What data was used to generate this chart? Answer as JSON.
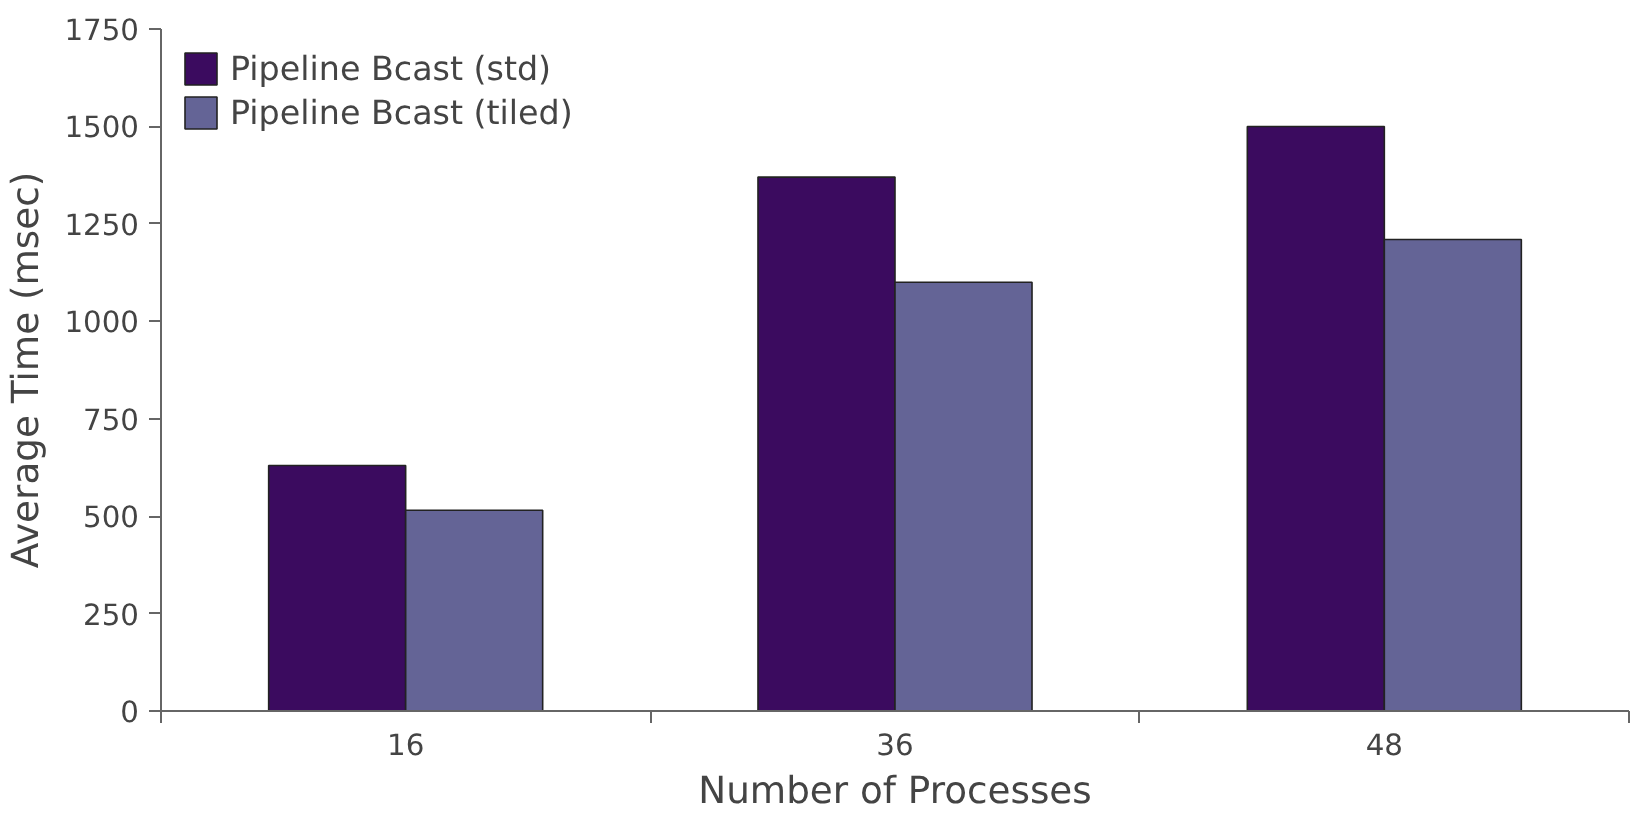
{
  "chart_data": {
    "type": "bar",
    "xlabel": "Number of Processes",
    "ylabel": "Average Time (msec)",
    "categories": [
      "16",
      "36",
      "48"
    ],
    "series": [
      {
        "name": "Pipeline Bcast (std)",
        "color": "#3b0b5f",
        "values": [
          630,
          1370,
          1500
        ]
      },
      {
        "name": "Pipeline Bcast (tiled)",
        "color": "#646496",
        "values": [
          515,
          1100,
          1210
        ]
      }
    ],
    "ylim": [
      0,
      1750
    ],
    "yticks": [
      0,
      250,
      500,
      750,
      1000,
      1250,
      1500,
      1750
    ],
    "grid": false,
    "legend": "top left"
  }
}
